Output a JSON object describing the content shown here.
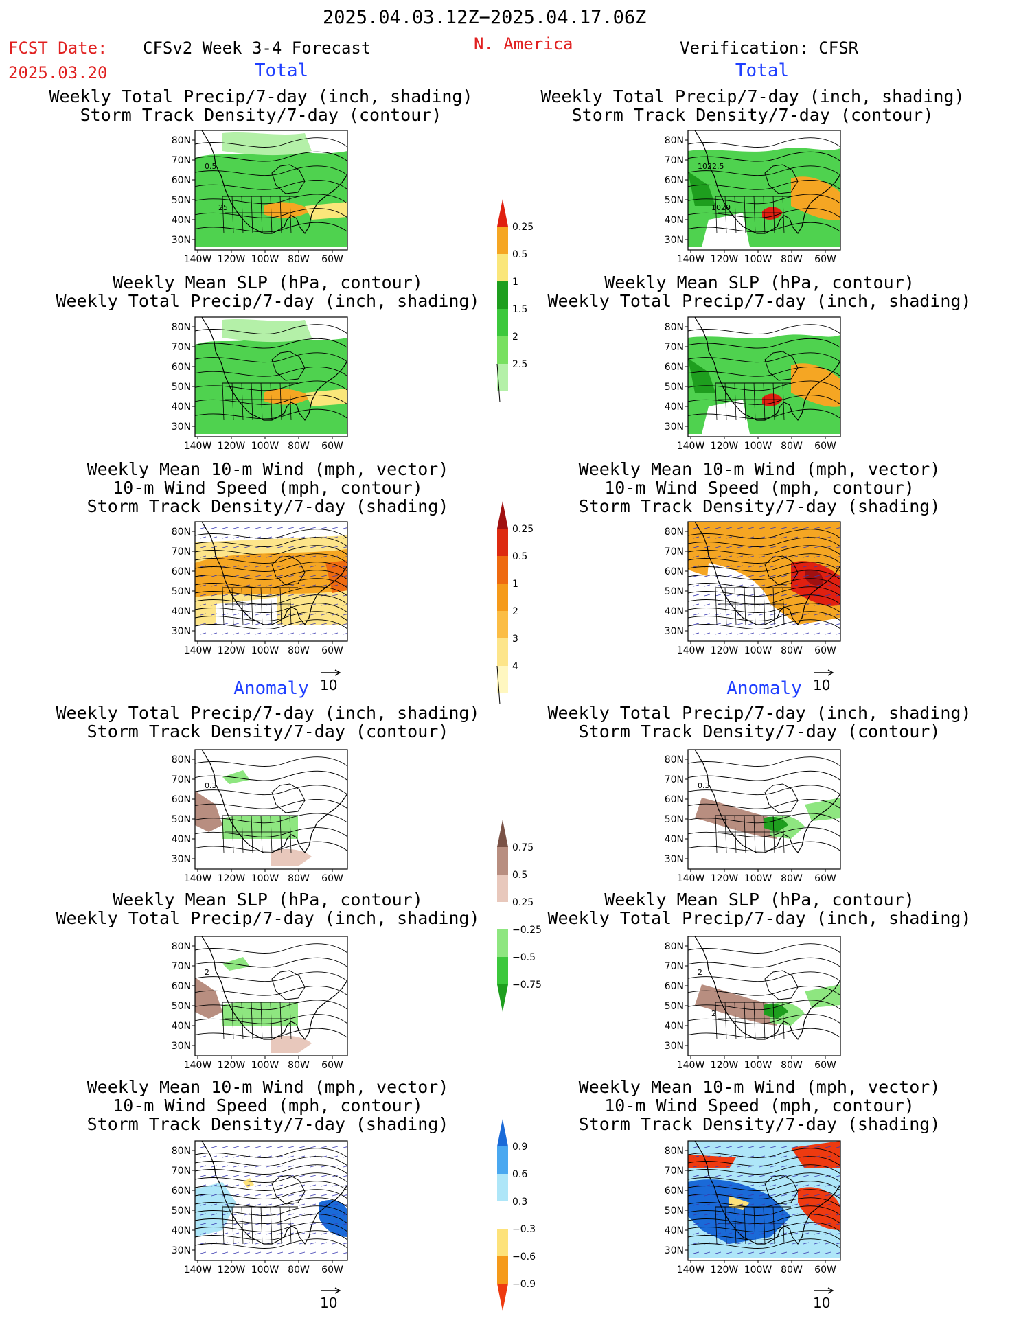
{
  "header": {
    "date_range": "2025.04.03.12Z−2025.04.17.06Z",
    "fcst_label": "FCST Date:",
    "fcst_date": "2025.03.20",
    "forecast_title": "CFSv2 Week 3-4 Forecast",
    "region": "N. America",
    "verification": "Verification: CFSR"
  },
  "sections": {
    "total": "Total",
    "anomaly": "Anomaly"
  },
  "titles": {
    "precip_storm": [
      "Weekly Total Precip/7-day (inch, shading)",
      "Storm Track Density/7-day (contour)"
    ],
    "slp_precip": [
      "Weekly Mean SLP (hPa, contour)",
      "Weekly Total Precip/7-day (inch, shading)"
    ],
    "wind_storm": [
      "Weekly Mean 10-m Wind (mph, vector)",
      "10-m Wind Speed (mph, contour)",
      "Storm Track Density/7-day (shading)"
    ]
  },
  "axes": {
    "lat_labels": [
      "80N",
      "70N",
      "60N",
      "50N",
      "40N",
      "30N"
    ],
    "lon_labels": [
      "140W",
      "120W",
      "100W",
      "80W",
      "60W"
    ]
  },
  "vector_ref": "10",
  "contour_labels": {
    "p1": [
      "0.5",
      "25"
    ],
    "p2": [
      "1022.5",
      "1020"
    ],
    "p7": [
      "0.3"
    ],
    "p8": [
      "0.3"
    ],
    "p9": [
      "2"
    ],
    "p10": [
      "2",
      "2"
    ]
  },
  "colorbars": {
    "precip_total": {
      "labels": [
        "0.25",
        "0.5",
        "1",
        "1.5",
        "2",
        "2.5"
      ],
      "colors": [
        "#b4f0a8",
        "#78e060",
        "#3cc83c",
        "#1e9e1e",
        "#fae67a",
        "#f5a623",
        "#e02010"
      ]
    },
    "storm_total": {
      "labels": [
        "0.25",
        "0.5",
        "1",
        "2",
        "3",
        "4"
      ],
      "colors": [
        "#fff7c0",
        "#fde58a",
        "#fbbd45",
        "#f59a1a",
        "#ee6a10",
        "#dd2a10",
        "#a01010"
      ]
    },
    "precip_anom": {
      "labels": [
        "0.75",
        "0.5",
        "0.25",
        "−0.25",
        "−0.5",
        "−0.75"
      ],
      "colors": [
        "#1e9e1e",
        "#3cc83c",
        "#8ee680",
        "#ffffff",
        "#e8c8bc",
        "#b88e80",
        "#7a5246"
      ]
    },
    "storm_anom": {
      "labels": [
        "0.9",
        "0.6",
        "0.3",
        "−0.3",
        "−0.6",
        "−0.9"
      ],
      "colors": [
        "#ee3a10",
        "#f59a1a",
        "#fde27a",
        "#ffffff",
        "#aee6f8",
        "#4aa8f0",
        "#1a6ad8"
      ]
    }
  },
  "colors": {
    "land_green": "#4fd24f",
    "dark_green": "#1e9e1e",
    "orange": "#f5a623",
    "red": "#e02010",
    "brown": "#b88e80",
    "blue": "#1a6ad8",
    "light_blue": "#aee6f8",
    "vector_blue": "#3a3ab0"
  }
}
